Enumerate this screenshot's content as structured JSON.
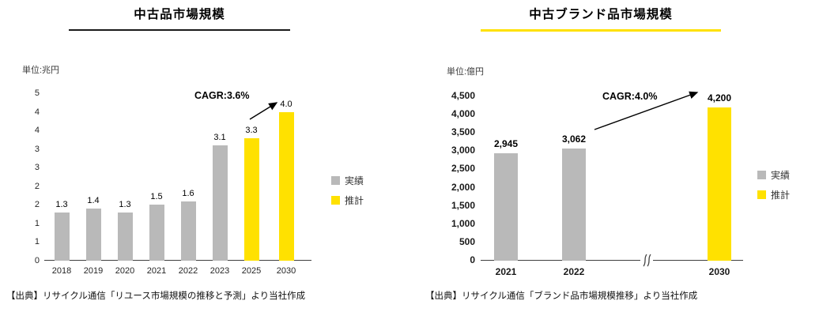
{
  "page": {
    "background": "#ffffff"
  },
  "chart_data": [
    {
      "type": "bar",
      "title": "中古品市場規模",
      "unit_label": "単位:兆円",
      "categories": [
        "2018",
        "2019",
        "2020",
        "2021",
        "2022",
        "2023",
        "2025",
        "2030"
      ],
      "series": [
        {
          "name": "実績",
          "color": "#b9b9b9",
          "values": [
            1.3,
            1.4,
            1.3,
            1.5,
            1.6,
            3.1,
            null,
            null
          ]
        },
        {
          "name": "推計",
          "color": "#ffe100",
          "values": [
            null,
            null,
            null,
            null,
            null,
            null,
            3.3,
            4.0
          ]
        }
      ],
      "bar_labels": [
        "1.3",
        "1.4",
        "1.3",
        "1.5",
        "1.6",
        "3.1",
        "3.3",
        "4.0"
      ],
      "ylim": [
        0,
        4.5
      ],
      "ytick_step": 0.5,
      "ytick_labels": [
        "0",
        "1",
        "1",
        "2",
        "2",
        "3",
        "3",
        "4",
        "4",
        "5"
      ],
      "grid": false,
      "legend_position": "right",
      "annotation": "CAGR:3.6%",
      "title_underline_color": "#1a1a1a",
      "source": "【出典】リサイクル通信「リユース市場規模の推移と予測」より当社作成"
    },
    {
      "type": "bar",
      "title": "中古ブランド品市場規模",
      "unit_label": "単位:億円",
      "categories": [
        "2021",
        "2022",
        "2030"
      ],
      "series": [
        {
          "name": "実績",
          "color": "#b9b9b9",
          "values": [
            2945,
            3062,
            null
          ]
        },
        {
          "name": "推計",
          "color": "#ffe100",
          "values": [
            null,
            null,
            4200
          ]
        }
      ],
      "bar_labels": [
        "2,945",
        "3,062",
        "4,200"
      ],
      "ylim": [
        0,
        4500
      ],
      "ytick_step": 500,
      "ytick_labels": [
        "0",
        "500",
        "1,000",
        "1,500",
        "2,000",
        "2,500",
        "3,000",
        "3,500",
        "4,000",
        "4,500"
      ],
      "grid": false,
      "legend_position": "right",
      "annotation": "CAGR:4.0%",
      "axis_break": {
        "between": [
          "2022",
          "2030"
        ]
      },
      "title_underline_color": "#ffe100",
      "source": "【出典】リサイクル通信「ブランド品市場規模推移」より当社作成"
    }
  ]
}
